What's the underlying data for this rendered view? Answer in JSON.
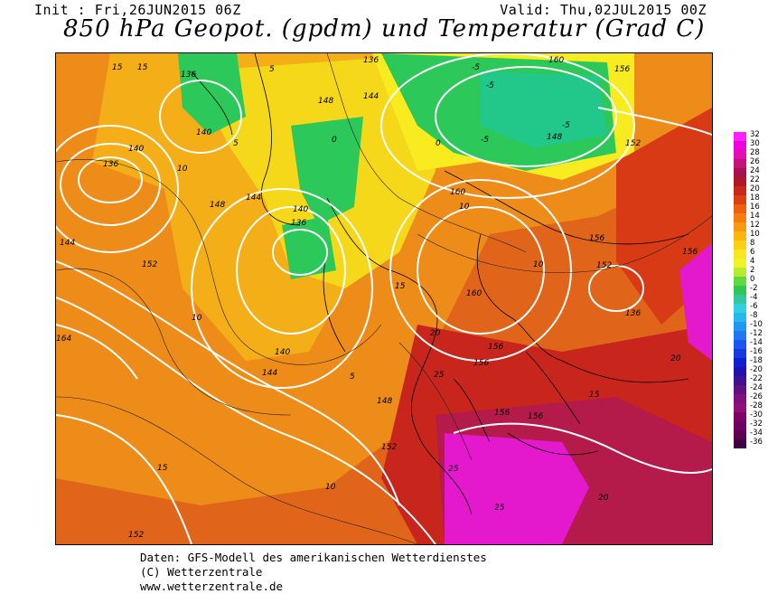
{
  "header": {
    "init": "Init : Fri,26JUN2015 06Z",
    "valid": "Valid: Thu,02JUL2015 00Z",
    "title": "850 hPa Geopot. (gpdm) und Temperatur (Grad C)"
  },
  "map": {
    "geopotential_labels": [
      "136",
      "136",
      "140",
      "140",
      "136",
      "144",
      "148",
      "148",
      "140",
      "136",
      "144",
      "152",
      "160",
      "164",
      "160",
      "156",
      "152",
      "156",
      "156",
      "156",
      "156",
      "152",
      "148",
      "144",
      "140",
      "144",
      "152",
      "156",
      "136",
      "148",
      "152",
      "156",
      "160"
    ],
    "temperature_labels": [
      "15",
      "15",
      "10",
      "5",
      "5",
      "0",
      "0",
      "-5",
      "-5",
      "-5",
      "-5",
      "10",
      "10",
      "15",
      "20",
      "25",
      "25",
      "20",
      "25",
      "20",
      "15",
      "10",
      "15",
      "5",
      "10"
    ],
    "colors": {
      "cold": "#22c455",
      "cool": "#f4ee20",
      "mild": "#f0a010",
      "warm": "#e76010",
      "hot": "#d03018",
      "very_hot": "#b81a55",
      "extreme": "#ee18d0"
    }
  },
  "legend": {
    "values": [
      "32",
      "30",
      "28",
      "26",
      "24",
      "22",
      "20",
      "18",
      "16",
      "14",
      "12",
      "10",
      "8",
      "6",
      "4",
      "2",
      "0",
      "-2",
      "-4",
      "-6",
      "-8",
      "-10",
      "-12",
      "-14",
      "-16",
      "-18",
      "-20",
      "-22",
      "-24",
      "-26",
      "-28",
      "-30",
      "-32",
      "-34",
      "-36"
    ],
    "colors": [
      "#ff20ff",
      "#f000e0",
      "#e010b0",
      "#c8107a",
      "#a81050",
      "#b01828",
      "#c82818",
      "#dd4010",
      "#ec6010",
      "#f47c10",
      "#f89a10",
      "#fcb410",
      "#fcd010",
      "#f8e820",
      "#eef428",
      "#b8ea30",
      "#60d840",
      "#30c850",
      "#30c8a0",
      "#30d0e0",
      "#28b8f0",
      "#2098f0",
      "#2078f0",
      "#1858f0",
      "#1838e0",
      "#1020d0",
      "#2010b0",
      "#401090",
      "#601080",
      "#801080",
      "#901078",
      "#800068",
      "#700060",
      "#600050",
      "#400040"
    ]
  },
  "footer": {
    "line1": "Daten: GFS-Modell des amerikanischen Wetterdienstes",
    "line2": "(C) Wetterzentrale",
    "line3": "www.wetterzentrale.de"
  }
}
